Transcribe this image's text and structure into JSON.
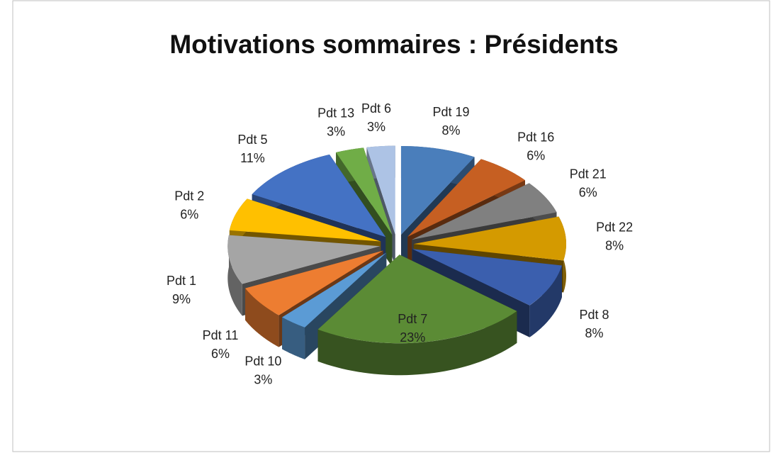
{
  "chart_data": {
    "type": "pie",
    "title": "Motivations sommaires : Présidents",
    "categories": [
      "Pdt 19",
      "Pdt 16",
      "Pdt 21",
      "Pdt 22",
      "Pdt 8",
      "Pdt 7",
      "Pdt 10",
      "Pdt 11",
      "Pdt 1",
      "Pdt 2",
      "Pdt 5",
      "Pdt 13",
      "Pdt 6"
    ],
    "values": [
      8,
      6,
      6,
      8,
      8,
      23,
      3,
      6,
      9,
      6,
      11,
      3,
      3
    ],
    "value_labels": [
      "8%",
      "6%",
      "6%",
      "8%",
      "8%",
      "23%",
      "3%",
      "6%",
      "9%",
      "6%",
      "11%",
      "3%",
      "3%"
    ],
    "colors": [
      "#4a7ebb",
      "#c65f22",
      "#808080",
      "#d49a00",
      "#3b5fae",
      "#5b8b35",
      "#5b9bd5",
      "#ed7d31",
      "#a5a5a5",
      "#ffc000",
      "#4472c4",
      "#70ad47",
      "#adc3e5"
    ]
  }
}
